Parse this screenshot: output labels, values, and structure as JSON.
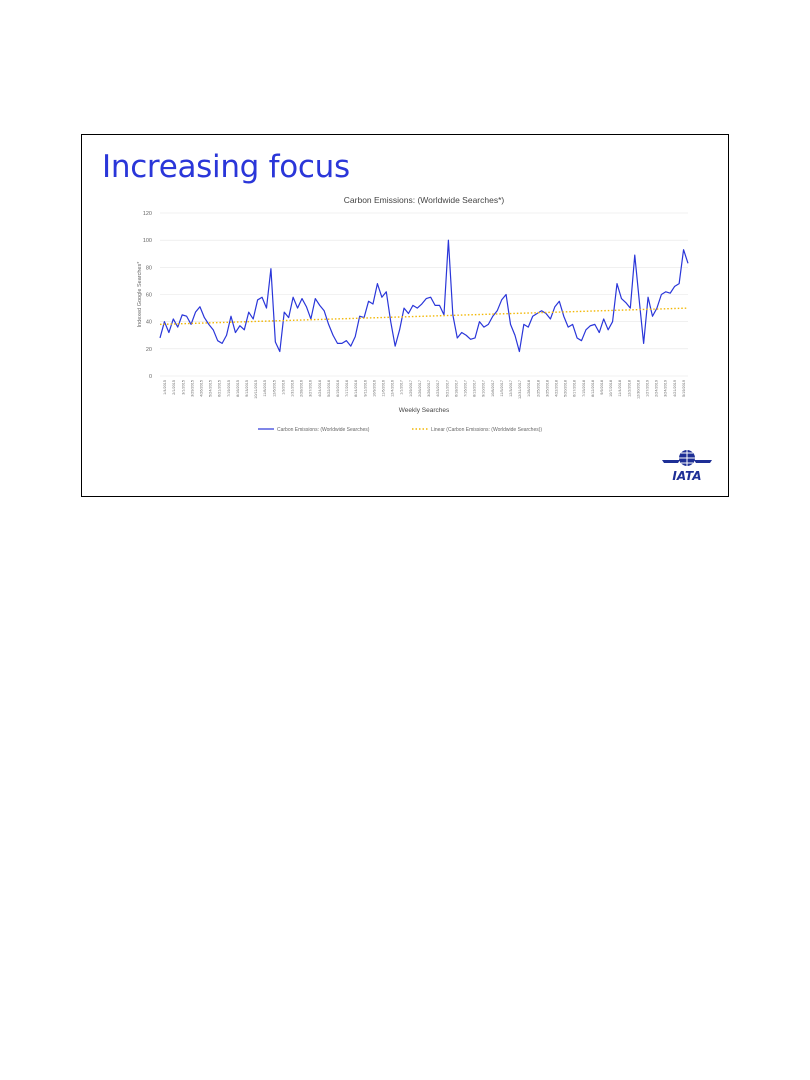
{
  "slide": {
    "title": "Increasing focus",
    "logo_text": "IATA"
  },
  "colors": {
    "title": "#2a36d9",
    "series": "#2a36d9",
    "trend": "#f2b705",
    "axis_text": "#666666",
    "grid": "#e6e6e6",
    "logo_blue": "#1e2f96"
  },
  "chart_data": {
    "type": "line",
    "title": "Carbon Emissions: (Worldwide Searches*)",
    "xlabel": "Weekly Searches",
    "ylabel": "Indexed Google Searches*",
    "ylim": [
      0,
      120
    ],
    "yticks": [
      0,
      20,
      40,
      60,
      80,
      100,
      120
    ],
    "grid": true,
    "legend_position": "bottom",
    "x_tick_labels": [
      "1/4/2015",
      "2/1/2015",
      "3/1/2015",
      "3/29/2015",
      "4/26/2015",
      "5/24/2015",
      "6/21/2015",
      "7/19/2015",
      "8/16/2015",
      "9/13/2015",
      "10/11/2015",
      "11/8/2015",
      "12/6/2015",
      "1/3/2016",
      "1/31/2016",
      "2/28/2016",
      "3/27/2016",
      "4/24/2016",
      "5/22/2016",
      "6/19/2016",
      "7/17/2016",
      "8/14/2016",
      "9/11/2016",
      "10/9/2016",
      "11/6/2016",
      "12/4/2016",
      "1/1/2017",
      "1/29/2017",
      "2/26/2017",
      "3/26/2017",
      "4/23/2017",
      "5/21/2017",
      "6/18/2017",
      "7/16/2017",
      "8/13/2017",
      "9/10/2017",
      "10/8/2017",
      "11/5/2017",
      "12/3/2017",
      "12/31/2017",
      "1/28/2018",
      "2/25/2018",
      "3/25/2018",
      "4/22/2018",
      "5/20/2018",
      "6/17/2018",
      "7/15/2018",
      "8/12/2018",
      "9/9/2018",
      "10/7/2018",
      "11/4/2018",
      "12/2/2018",
      "12/30/2018",
      "1/27/2019",
      "2/24/2019",
      "3/24/2019",
      "4/21/2019",
      "5/19/2019"
    ],
    "series": [
      {
        "name": "Carbon Emissions: (Worldwide Searches)",
        "style": "solid",
        "values": [
          28,
          40,
          32,
          42,
          36,
          45,
          44,
          38,
          47,
          51,
          43,
          38,
          34,
          26,
          24,
          30,
          44,
          32,
          37,
          34,
          47,
          42,
          56,
          58,
          50,
          79,
          25,
          18,
          47,
          43,
          58,
          50,
          57,
          51,
          42,
          57,
          52,
          48,
          38,
          30,
          24,
          24,
          26,
          22,
          29,
          44,
          43,
          55,
          53,
          68,
          58,
          62,
          40,
          22,
          34,
          50,
          46,
          52,
          50,
          53,
          57,
          58,
          52,
          52,
          45,
          100,
          45,
          28,
          32,
          30,
          27,
          28,
          40,
          36,
          38,
          44,
          48,
          56,
          60,
          38,
          30,
          18,
          38,
          36,
          44,
          46,
          48,
          46,
          42,
          51,
          55,
          44,
          36,
          38,
          28,
          26,
          34,
          37,
          38,
          32,
          42,
          34,
          40,
          68,
          57,
          54,
          50,
          89,
          56,
          24,
          58,
          44,
          50,
          60,
          62,
          61,
          66,
          68,
          93,
          83
        ]
      },
      {
        "name": "Linear (Carbon Emissions: (Worldwide Searches))",
        "style": "dotted",
        "values_start": 38,
        "values_end": 50
      }
    ]
  }
}
